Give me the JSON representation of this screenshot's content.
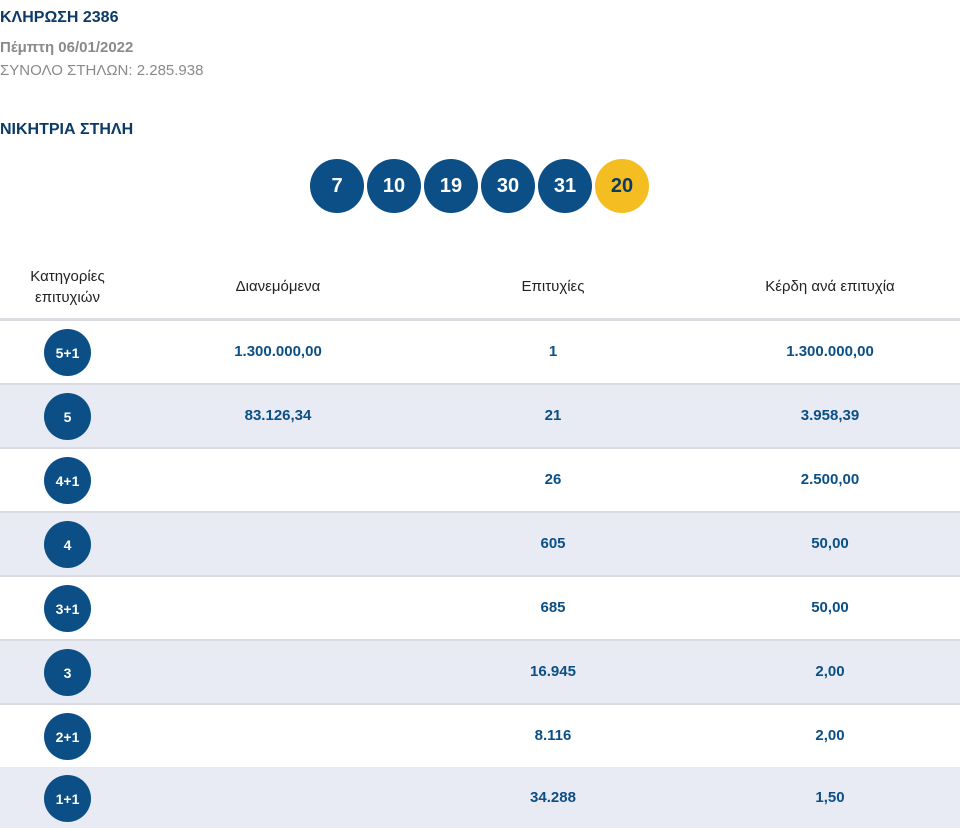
{
  "draw": {
    "title": "ΚΛΗΡΩΣΗ 2386",
    "date": "Πέμπτη 06/01/2022",
    "total_columns": "ΣΥΝΟΛΟ ΣΤΗΛΩΝ: 2.285.938"
  },
  "winning": {
    "title": "ΝΙΚΗΤΡΙΑ ΣΤΗΛΗ",
    "numbers": [
      "7",
      "10",
      "19",
      "30",
      "31"
    ],
    "joker": "20"
  },
  "table": {
    "headers": {
      "category": "Κατηγορίες επιτυχιών",
      "distributed": "Διανεμόμενα",
      "successes": "Επιτυχίες",
      "prize_per_success": "Κέρδη ανά επιτυχία"
    },
    "rows": [
      {
        "category": "5+1",
        "distributed": "1.300.000,00",
        "successes": "1",
        "prize": "1.300.000,00"
      },
      {
        "category": "5",
        "distributed": "83.126,34",
        "successes": "21",
        "prize": "3.958,39"
      },
      {
        "category": "4+1",
        "distributed": "",
        "successes": "26",
        "prize": "2.500,00"
      },
      {
        "category": "4",
        "distributed": "",
        "successes": "605",
        "prize": "50,00"
      },
      {
        "category": "3+1",
        "distributed": "",
        "successes": "685",
        "prize": "50,00"
      },
      {
        "category": "3",
        "distributed": "",
        "successes": "16.945",
        "prize": "2,00"
      },
      {
        "category": "2+1",
        "distributed": "",
        "successes": "8.116",
        "prize": "2,00"
      },
      {
        "category": "1+1",
        "distributed": "",
        "successes": "34.288",
        "prize": "1,50"
      }
    ]
  },
  "colors": {
    "primary_blue": "#0b4f86",
    "joker_yellow": "#f4bd22",
    "alt_row": "#e8ebf3"
  }
}
